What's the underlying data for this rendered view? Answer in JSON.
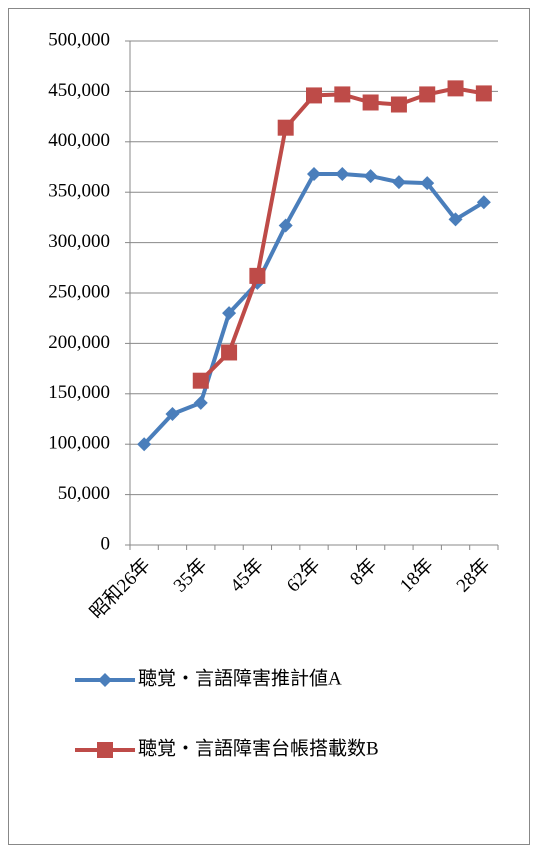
{
  "chart_data": {
    "type": "line",
    "categories": [
      "昭和26年",
      null,
      "35年",
      null,
      "45年",
      null,
      "62年",
      null,
      "8年",
      null,
      "18年",
      null,
      "28年"
    ],
    "series": [
      {
        "name": "聴覚・言語障害推計値A",
        "color": "#4a7ebb",
        "marker": "diamond",
        "values": [
          100000,
          130000,
          141000,
          230000,
          260000,
          317000,
          368000,
          368000,
          366000,
          360000,
          359000,
          323000,
          340000
        ]
      },
      {
        "name": "聴覚・言語障害台帳搭載数B",
        "color": "#be4b48",
        "marker": "square",
        "values": [
          null,
          null,
          163000,
          191000,
          267000,
          414000,
          446000,
          447000,
          439000,
          437000,
          447000,
          453000,
          448000
        ]
      }
    ],
    "ylim": [
      0,
      500000
    ],
    "yticks": [
      0,
      {
        "value": 50000,
        "label": "50,000"
      },
      {
        "value": 100000,
        "label": "100,000"
      },
      {
        "value": 150000,
        "label": "150,000"
      },
      {
        "value": 200000,
        "label": "200,000"
      },
      {
        "value": 250000,
        "label": "250,000"
      },
      {
        "value": 300000,
        "label": "300,000"
      },
      {
        "value": 350000,
        "label": "350,000"
      },
      {
        "value": 400000,
        "label": "400,000"
      },
      {
        "value": 450000,
        "label": "450,000"
      },
      {
        "value": 500000,
        "label": "500,000"
      }
    ],
    "grid": true
  }
}
